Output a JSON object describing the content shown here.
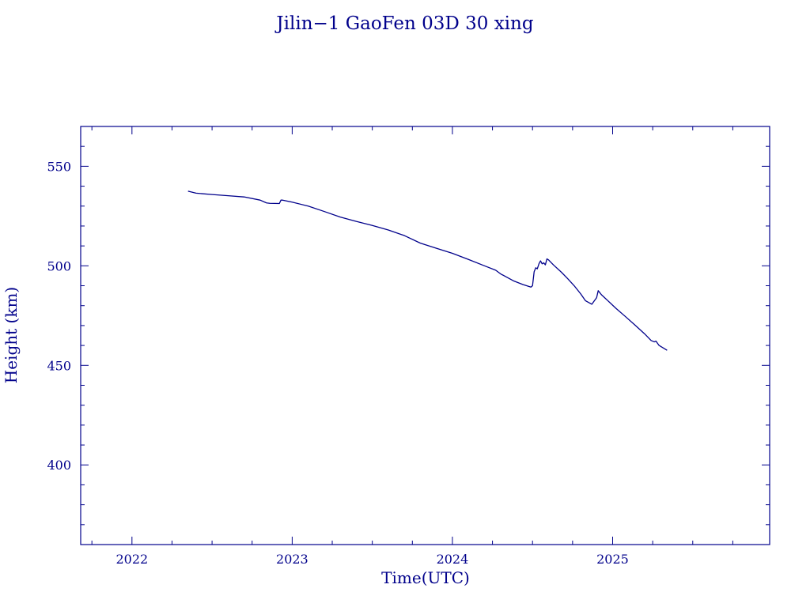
{
  "chart_data": {
    "type": "line",
    "title": "Jilin−1 GaoFen 03D 30 xing",
    "xlabel": "Time(UTC)",
    "ylabel": "Height (km)",
    "xlim": [
      2021.68,
      2025.98
    ],
    "ylim": [
      360,
      570
    ],
    "x_major_ticks": [
      2022,
      2023,
      2024,
      2025
    ],
    "y_major_ticks": [
      400,
      450,
      500,
      550
    ],
    "grid": false,
    "line_color": "#00008b",
    "series": [
      {
        "x": [
          2022.35,
          2022.4,
          2022.5,
          2022.6,
          2022.7,
          2022.8,
          2022.84,
          2022.86,
          2022.92,
          2022.93,
          2022.94,
          2023.0,
          2023.1,
          2023.2,
          2023.3,
          2023.4,
          2023.5,
          2023.6,
          2023.7,
          2023.8,
          2023.9,
          2024.0,
          2024.1,
          2024.2,
          2024.27,
          2024.3,
          2024.38,
          2024.44,
          2024.49,
          2024.5,
          2024.51,
          2024.52,
          2024.53,
          2024.54,
          2024.55,
          2024.56,
          2024.57,
          2024.58,
          2024.59,
          2024.6,
          2024.63,
          2024.68,
          2024.72,
          2024.76,
          2024.8,
          2024.83,
          2024.87,
          2024.9,
          2024.91,
          2024.92,
          2024.93,
          2024.97,
          2025.02,
          2025.08,
          2025.14,
          2025.2,
          2025.24,
          2025.26,
          2025.27,
          2025.29,
          2025.34
        ],
        "y": [
          537.5,
          536.5,
          535.8,
          535.2,
          534.6,
          533.0,
          531.6,
          531.4,
          531.3,
          533.0,
          533.0,
          532.0,
          530.0,
          527.3,
          524.5,
          522.3,
          520.3,
          518.0,
          515.2,
          511.4,
          508.8,
          506.3,
          503.2,
          500.0,
          497.8,
          496.0,
          492.5,
          490.6,
          489.3,
          490.0,
          497.0,
          499.0,
          498.5,
          501.0,
          502.5,
          501.0,
          501.5,
          500.5,
          503.5,
          503.0,
          500.5,
          496.8,
          493.5,
          490.0,
          486.0,
          482.5,
          480.7,
          484.0,
          487.5,
          486.5,
          485.5,
          482.5,
          478.7,
          474.5,
          470.2,
          465.8,
          462.5,
          461.8,
          462.2,
          460.0,
          457.6
        ]
      }
    ]
  }
}
